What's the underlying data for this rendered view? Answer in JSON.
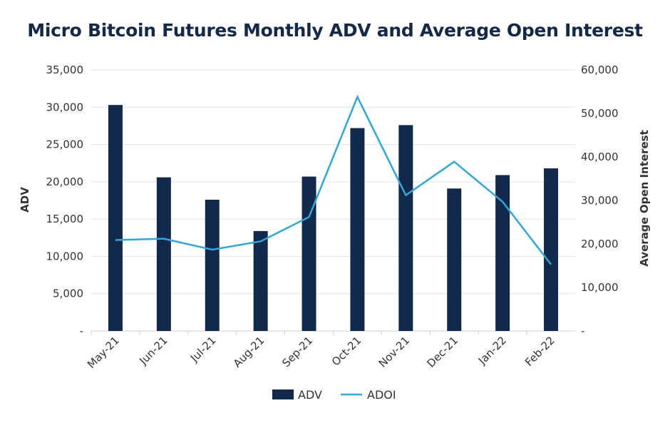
{
  "chart_data": {
    "type": "bar+line",
    "title": "Micro Bitcoin Futures Monthly ADV and Average Open Interest",
    "categories": [
      "May-21",
      "Jun-21",
      "Jul-21",
      "Aug-21",
      "Sep-21",
      "Oct-21",
      "Nov-21",
      "Dec-21",
      "Jan-22",
      "Feb-22"
    ],
    "ylabel_left": "ADV",
    "ylabel_right": "Average Open Interest",
    "ylim_left": [
      0,
      35000
    ],
    "ylim_right": [
      0,
      60000
    ],
    "yticks_left": [
      "-",
      "5,000",
      "10,000",
      "15,000",
      "20,000",
      "25,000",
      "30,000",
      "35,000"
    ],
    "yticks_right": [
      "-",
      "10,000",
      "20,000",
      "30,000",
      "40,000",
      "50,000",
      "60,000"
    ],
    "grid": true,
    "legend_position": "bottom",
    "series": [
      {
        "name": "ADV",
        "type": "bar",
        "axis": "left",
        "color": "#13294b",
        "values": [
          30300,
          20600,
          17600,
          13400,
          20700,
          27200,
          27600,
          19100,
          20900,
          21800
        ]
      },
      {
        "name": "ADOI",
        "type": "line",
        "axis": "right",
        "color": "#2ea8dc",
        "values": [
          20900,
          21200,
          18700,
          20600,
          26200,
          53800,
          31200,
          38900,
          29700,
          15300
        ]
      }
    ]
  }
}
